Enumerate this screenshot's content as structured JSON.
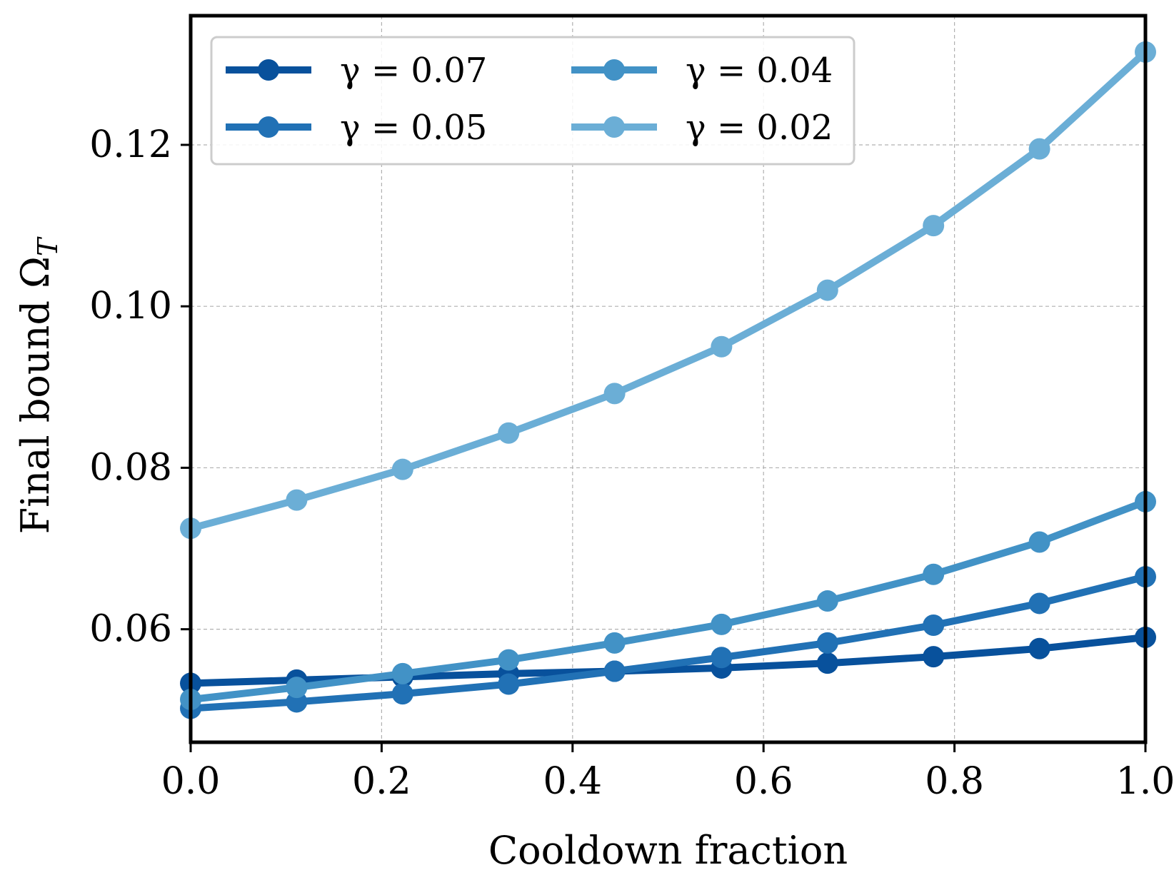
{
  "chart_data": {
    "type": "line",
    "title": "",
    "xlabel": "Cooldown fraction",
    "ylabel": "Final bound Ω",
    "ylabel_subscript": "T",
    "xlim": [
      0.0,
      1.0
    ],
    "ylim": [
      0.046,
      0.136
    ],
    "xticks": [
      0.0,
      0.2,
      0.4,
      0.6,
      0.8,
      1.0
    ],
    "xtick_labels": [
      "0.0",
      "0.2",
      "0.4",
      "0.6",
      "0.8",
      "1.0"
    ],
    "yticks": [
      0.06,
      0.08,
      0.1,
      0.12
    ],
    "ytick_labels": [
      "0.06",
      "0.08",
      "0.10",
      "0.12"
    ],
    "grid": true,
    "legend_position": "top-left",
    "x": [
      0.0,
      0.111,
      0.222,
      0.333,
      0.444,
      0.556,
      0.667,
      0.778,
      0.889,
      1.0
    ],
    "series": [
      {
        "name": "γ = 0.07",
        "color": "#08519c",
        "values": [
          0.0533,
          0.0537,
          0.0541,
          0.0545,
          0.0548,
          0.0552,
          0.0558,
          0.0566,
          0.0576,
          0.059
        ]
      },
      {
        "name": "γ = 0.05",
        "color": "#2171b5",
        "values": [
          0.0502,
          0.051,
          0.052,
          0.0532,
          0.0548,
          0.0565,
          0.0583,
          0.0605,
          0.0632,
          0.0665
        ]
      },
      {
        "name": "γ = 0.04",
        "color": "#4292c6",
        "values": [
          0.0513,
          0.0528,
          0.0545,
          0.0562,
          0.0583,
          0.0606,
          0.0635,
          0.0668,
          0.0708,
          0.0758
        ]
      },
      {
        "name": "γ = 0.02",
        "color": "#6baed6",
        "values": [
          0.0725,
          0.076,
          0.0798,
          0.0843,
          0.0892,
          0.095,
          0.102,
          0.11,
          0.1195,
          0.1315
        ]
      }
    ]
  }
}
